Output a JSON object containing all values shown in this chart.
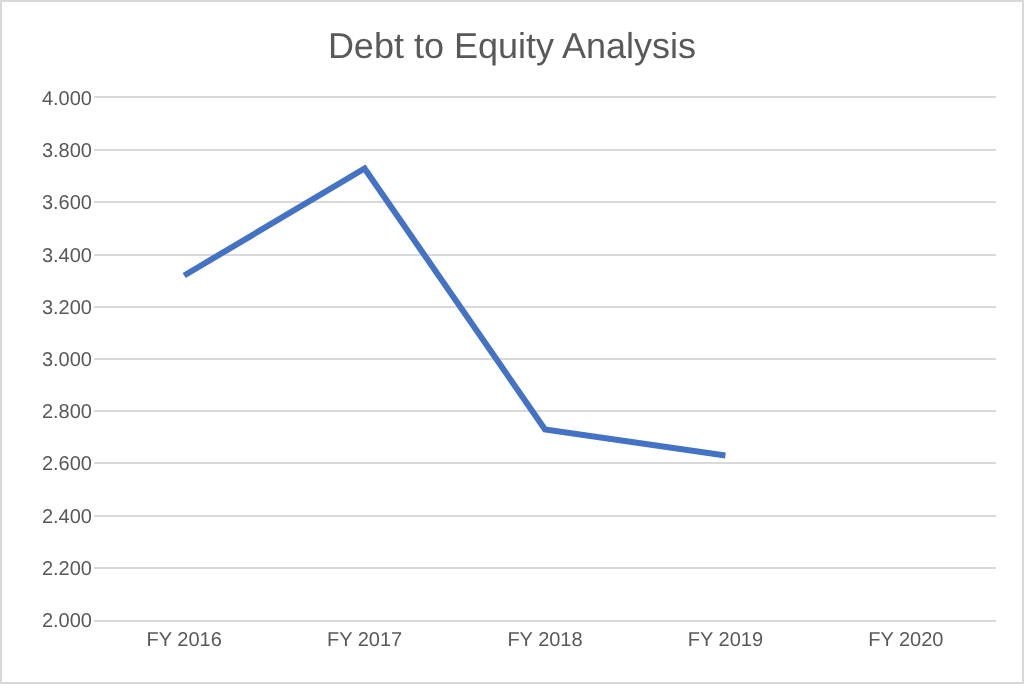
{
  "chart_data": {
    "type": "line",
    "title": "Debt to Equity Analysis",
    "categories": [
      "FY 2016",
      "FY 2017",
      "FY 2018",
      "FY 2019",
      "FY 2020"
    ],
    "series": [
      {
        "color": "#4472c4",
        "values": [
          3.32,
          3.73,
          2.73,
          2.63,
          null
        ]
      }
    ],
    "ylim": [
      2,
      4
    ],
    "yticks": [
      {
        "value": 2,
        "label": "2.000"
      },
      {
        "value": 2.2,
        "label": "2.200"
      },
      {
        "value": 2.4,
        "label": "2.400"
      },
      {
        "value": 2.6,
        "label": "2.600"
      },
      {
        "value": 2.8,
        "label": "2.800"
      },
      {
        "value": 3,
        "label": "3.000"
      },
      {
        "value": 3.2,
        "label": "3.200"
      },
      {
        "value": 3.4,
        "label": "3.400"
      },
      {
        "value": 3.6,
        "label": "3.600"
      },
      {
        "value": 3.8,
        "label": "3.800"
      },
      {
        "value": 4,
        "label": "4.000"
      }
    ],
    "grid": "y",
    "marker": "none",
    "line_style": "solid"
  }
}
